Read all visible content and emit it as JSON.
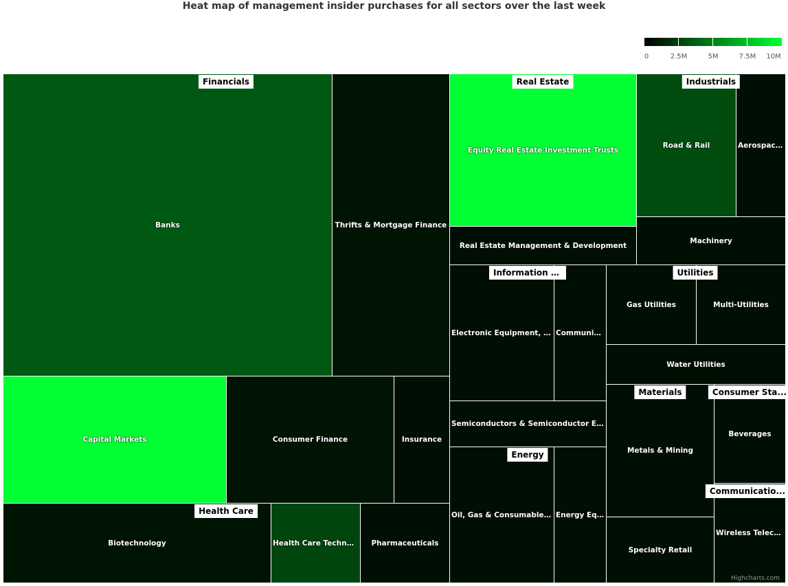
{
  "chart_data": {
    "type": "treemap",
    "title": "Heat map of management insider purchases for all sectors over the last week",
    "color_axis": {
      "min": 0,
      "max": 10000000,
      "min_color": "#000000",
      "max_color": "#00ff33",
      "ticks": [
        "0",
        "2.5M",
        "5M",
        "7.5M",
        "10M"
      ]
    },
    "sectors": [
      {
        "name": "Financials",
        "industries": [
          {
            "name": "Banks",
            "value": 3500000
          },
          {
            "name": "Thrifts & Mortgage Finance",
            "value": 800000
          },
          {
            "name": "Capital Markets",
            "value": 10000000
          },
          {
            "name": "Consumer Finance",
            "value": 800000
          },
          {
            "name": "Insurance",
            "value": 600000
          }
        ]
      },
      {
        "name": "Health Care",
        "industries": [
          {
            "name": "Biotechnology",
            "value": 800000
          },
          {
            "name": "Health Care Technol...",
            "value": 2700000
          },
          {
            "name": "Pharmaceuticals",
            "value": 600000
          }
        ]
      },
      {
        "name": "Real Estate",
        "industries": [
          {
            "name": "Equity Real Estate Investment Trusts",
            "value": 10000000
          },
          {
            "name": "Real Estate Management & Development",
            "value": 600000
          }
        ]
      },
      {
        "name": "Industrials",
        "industries": [
          {
            "name": "Road & Rail",
            "value": 3000000
          },
          {
            "name": "Aerospace...",
            "value": 600000
          },
          {
            "name": "Machinery",
            "value": 600000
          }
        ]
      },
      {
        "name": "Information Technology",
        "industries": [
          {
            "name": "Electronic Equipment, In...",
            "value": 600000
          },
          {
            "name": "Communic...",
            "value": 600000
          },
          {
            "name": "Semiconductors & Semiconductor Equ...",
            "value": 600000
          }
        ]
      },
      {
        "name": "Energy",
        "industries": [
          {
            "name": "Oil, Gas & Consumable F...",
            "value": 600000
          },
          {
            "name": "Energy Equ...",
            "value": 600000
          }
        ]
      },
      {
        "name": "Utilities",
        "industries": [
          {
            "name": "Gas Utilities",
            "value": 600000
          },
          {
            "name": "Multi-Utilities",
            "value": 600000
          },
          {
            "name": "Water Utilities",
            "value": 600000
          }
        ]
      },
      {
        "name": "Materials",
        "industries": [
          {
            "name": "Metals & Mining",
            "value": 600000
          },
          {
            "name": "Specialty Retail",
            "value": 600000
          }
        ]
      },
      {
        "name": "Consumer Sta...",
        "industries": [
          {
            "name": "Beverages",
            "value": 600000
          }
        ]
      },
      {
        "name": "Communicatio...",
        "industries": [
          {
            "name": "Wireless Teleco...",
            "value": 600000
          }
        ]
      }
    ]
  },
  "credit": "Highcharts.com"
}
